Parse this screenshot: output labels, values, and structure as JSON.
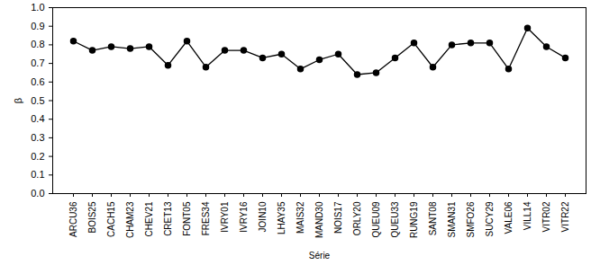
{
  "chart_data": {
    "type": "line",
    "x_label": "Série",
    "y_label": "β",
    "categories": [
      "ARCU36",
      "BOIS25",
      "CACH15",
      "CHAM23",
      "CHEV21",
      "CRET13",
      "FONT05",
      "FRES34",
      "IVRY01",
      "IVRY16",
      "JOIN10",
      "LHAY35",
      "MAIS32",
      "MAND30",
      "NOIS17",
      "ORLY20",
      "QUEU09",
      "QUEU33",
      "RUNG19",
      "SANT08",
      "SMAN31",
      "SMFO26",
      "SUCY29",
      "VALE06",
      "VILL14",
      "VITR02",
      "VITR22"
    ],
    "values": [
      0.82,
      0.77,
      0.79,
      0.78,
      0.79,
      0.69,
      0.82,
      0.68,
      0.77,
      0.77,
      0.73,
      0.75,
      0.67,
      0.72,
      0.75,
      0.64,
      0.65,
      0.73,
      0.81,
      0.68,
      0.8,
      0.81,
      0.81,
      0.67,
      0.89,
      0.79,
      0.73
    ],
    "color": "#000000",
    "marker": "circle",
    "line_style": "solid",
    "ylim": [
      0,
      1
    ],
    "yticks": [
      {
        "value": 0,
        "label": "0.0"
      },
      0.1,
      0.2,
      0.3,
      0.4,
      0.5,
      0.6,
      0.7,
      0.8,
      0.9,
      {
        "value": 1,
        "label": "1.0"
      }
    ],
    "grid": false
  }
}
